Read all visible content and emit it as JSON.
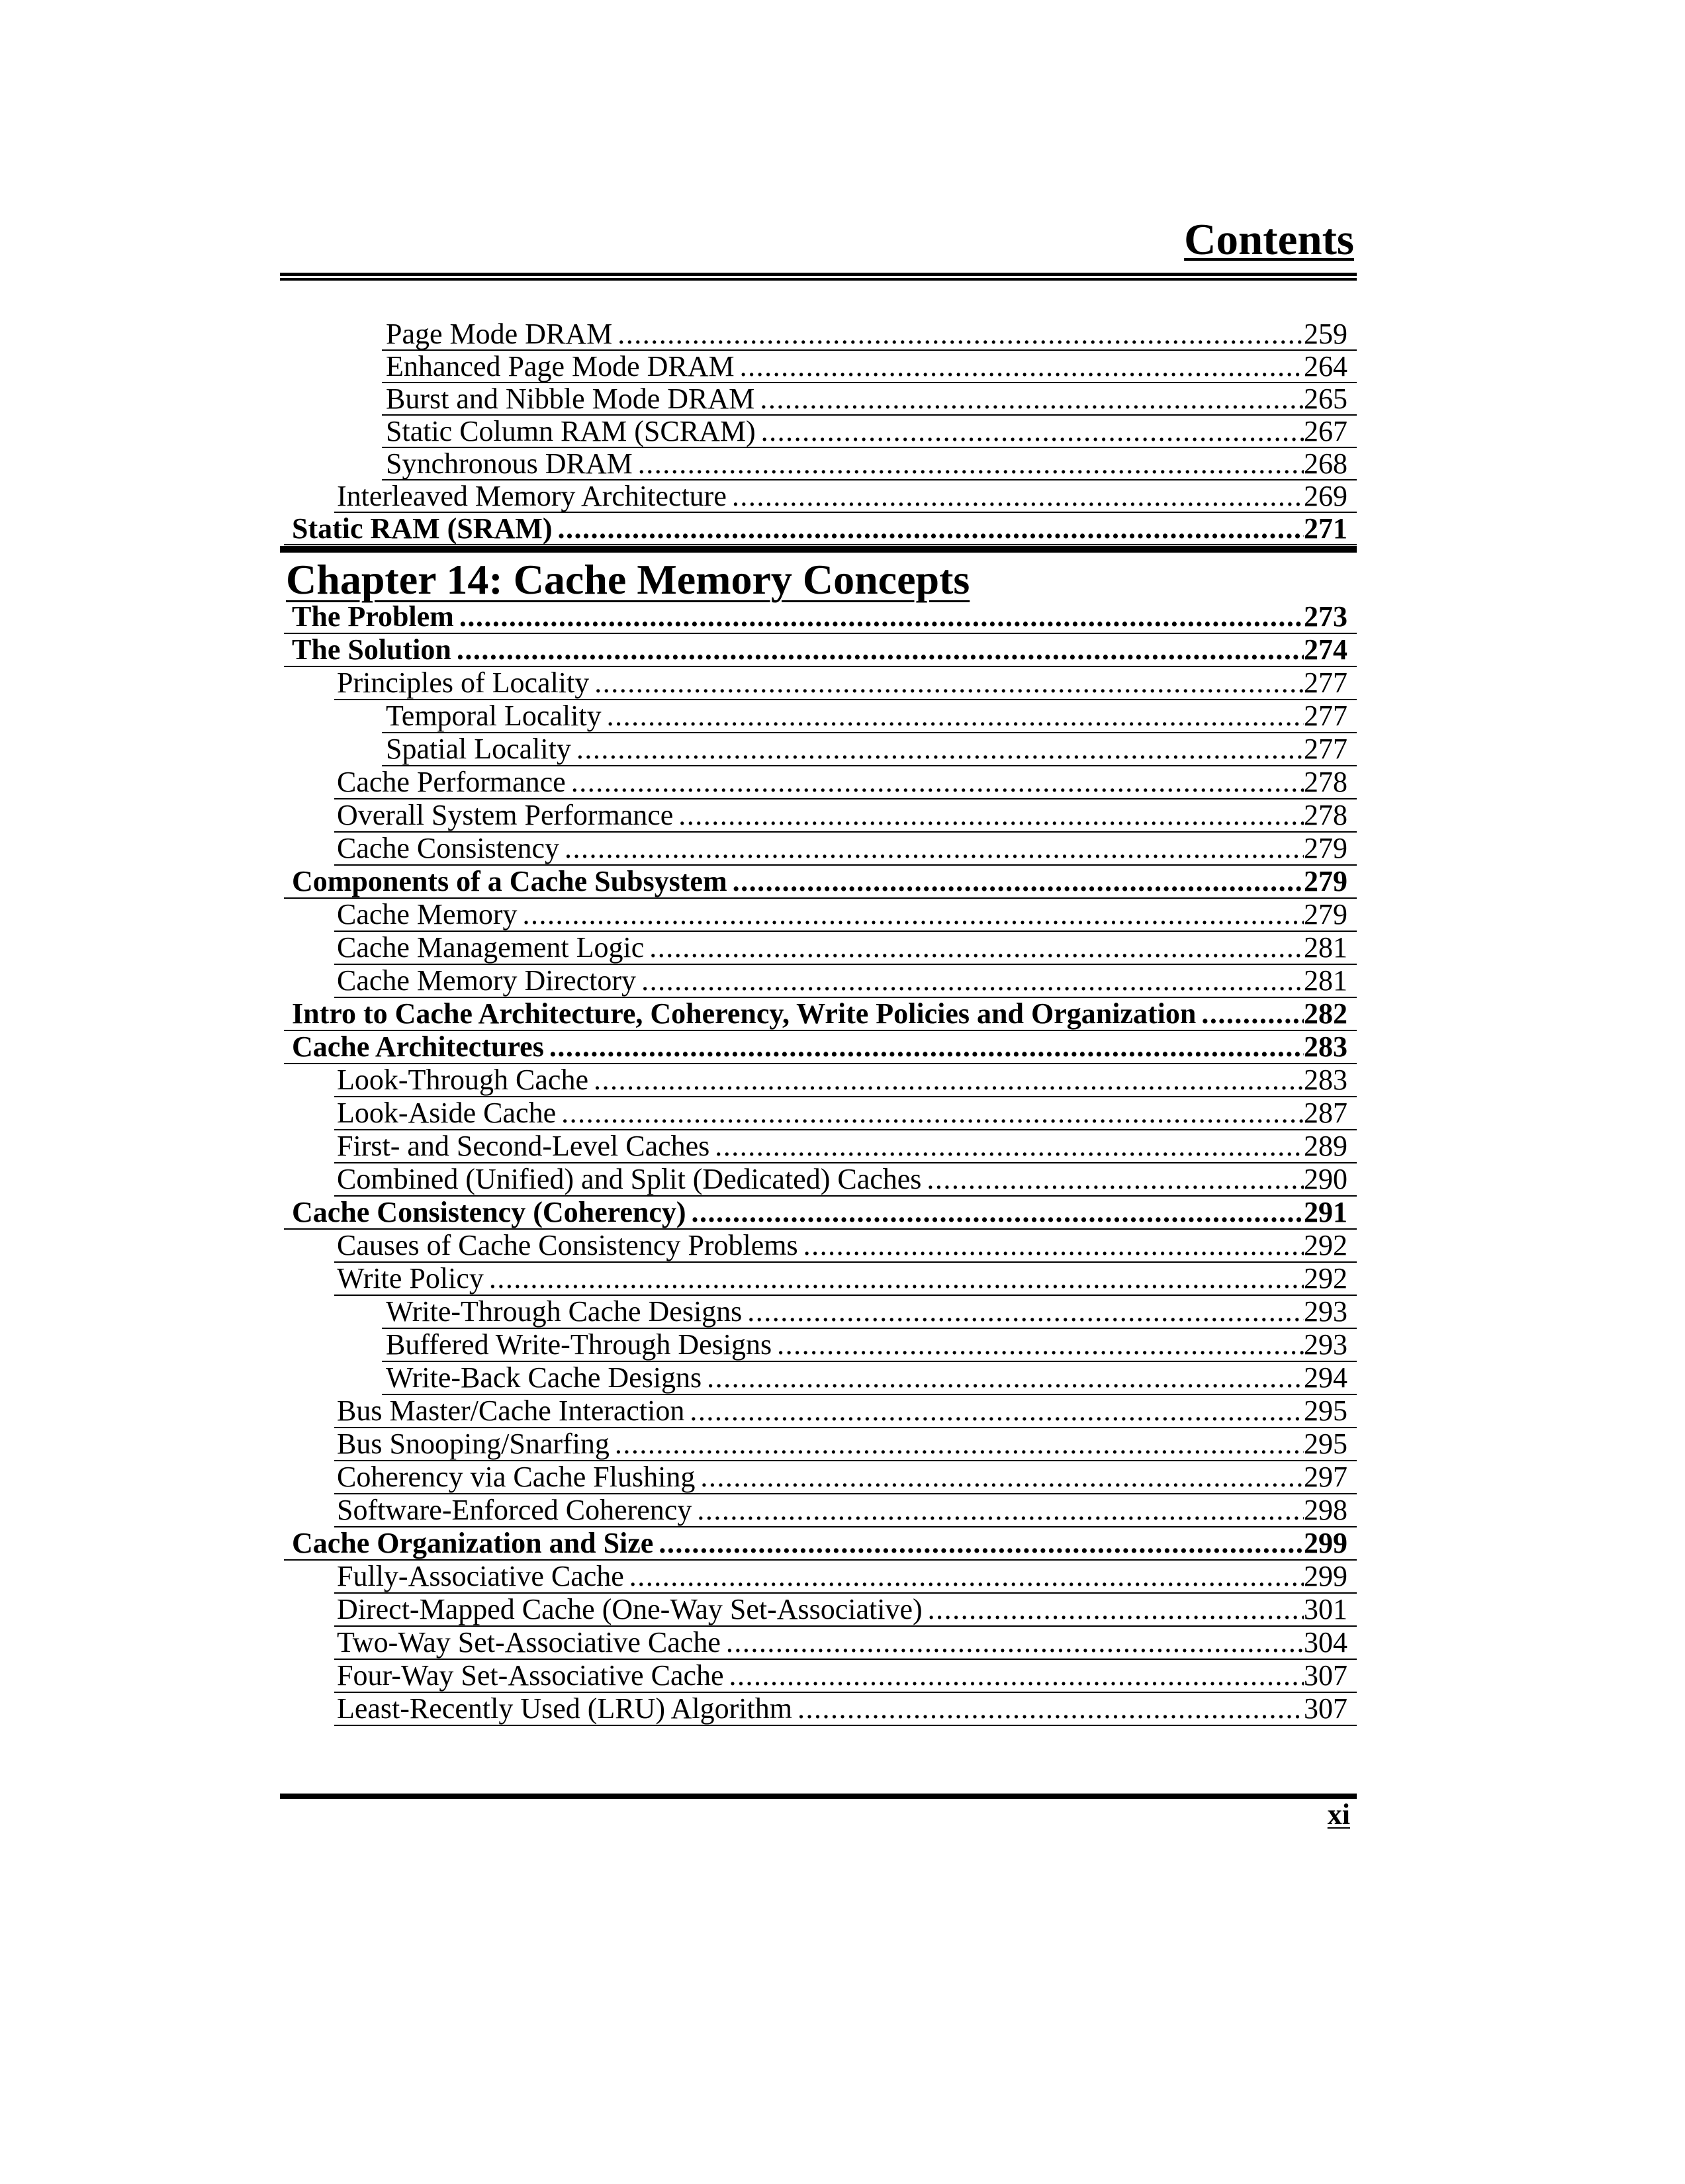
{
  "header": {
    "title": "Contents"
  },
  "chapter": {
    "title": "Chapter 14: Cache Memory Concepts"
  },
  "footer": {
    "page_number": "xi"
  },
  "colors": {
    "ink": "#000000",
    "paper": "#ffffff"
  },
  "toc": {
    "leader_char": ".",
    "top": [
      {
        "title": "Page Mode DRAM",
        "page": "259",
        "level": 2,
        "bold": false
      },
      {
        "title": "Enhanced Page Mode DRAM",
        "page": "264",
        "level": 2,
        "bold": false
      },
      {
        "title": "Burst and Nibble Mode DRAM",
        "page": "265",
        "level": 2,
        "bold": false
      },
      {
        "title": "Static Column RAM (SCRAM)",
        "page": "267",
        "level": 2,
        "bold": false
      },
      {
        "title": "Synchronous DRAM",
        "page": "268",
        "level": 2,
        "bold": false
      },
      {
        "title": "Interleaved Memory Architecture",
        "page": "269",
        "level": 1,
        "bold": false
      },
      {
        "title": "Static RAM (SRAM)",
        "page": "271",
        "level": 0,
        "bold": true
      }
    ],
    "chapter": [
      {
        "title": "The Problem",
        "page": "273",
        "level": 0,
        "bold": true
      },
      {
        "title": "The Solution",
        "page": "274",
        "level": 0,
        "bold": true
      },
      {
        "title": "Principles of Locality",
        "page": "277",
        "level": 1,
        "bold": false
      },
      {
        "title": "Temporal Locality",
        "page": "277",
        "level": 2,
        "bold": false
      },
      {
        "title": "Spatial Locality",
        "page": "277",
        "level": 2,
        "bold": false
      },
      {
        "title": "Cache Performance",
        "page": "278",
        "level": 1,
        "bold": false
      },
      {
        "title": "Overall System Performance",
        "page": "278",
        "level": 1,
        "bold": false
      },
      {
        "title": "Cache Consistency",
        "page": "279",
        "level": 1,
        "bold": false
      },
      {
        "title": "Components of a Cache Subsystem",
        "page": "279",
        "level": 0,
        "bold": true
      },
      {
        "title": "Cache Memory",
        "page": "279",
        "level": 1,
        "bold": false
      },
      {
        "title": "Cache Management Logic",
        "page": "281",
        "level": 1,
        "bold": false
      },
      {
        "title": "Cache Memory Directory",
        "page": "281",
        "level": 1,
        "bold": false
      },
      {
        "title": "Intro to Cache Architecture, Coherency, Write Policies and Organization",
        "page": "282",
        "level": 0,
        "bold": true
      },
      {
        "title": "Cache Architectures",
        "page": "283",
        "level": 0,
        "bold": true
      },
      {
        "title": "Look-Through Cache",
        "page": "283",
        "level": 1,
        "bold": false
      },
      {
        "title": "Look-Aside Cache",
        "page": "287",
        "level": 1,
        "bold": false
      },
      {
        "title": "First- and Second-Level Caches",
        "page": "289",
        "level": 1,
        "bold": false
      },
      {
        "title": "Combined (Unified) and Split (Dedicated) Caches",
        "page": "290",
        "level": 1,
        "bold": false
      },
      {
        "title": "Cache Consistency (Coherency)",
        "page": "291",
        "level": 0,
        "bold": true
      },
      {
        "title": "Causes of Cache Consistency Problems",
        "page": "292",
        "level": 1,
        "bold": false
      },
      {
        "title": "Write Policy",
        "page": "292",
        "level": 1,
        "bold": false
      },
      {
        "title": "Write-Through Cache Designs",
        "page": "293",
        "level": 2,
        "bold": false
      },
      {
        "title": "Buffered Write-Through Designs",
        "page": "293",
        "level": 2,
        "bold": false
      },
      {
        "title": "Write-Back Cache Designs",
        "page": "294",
        "level": 2,
        "bold": false
      },
      {
        "title": "Bus Master/Cache Interaction",
        "page": "295",
        "level": 1,
        "bold": false
      },
      {
        "title": "Bus Snooping/Snarfing",
        "page": "295",
        "level": 1,
        "bold": false
      },
      {
        "title": "Coherency via Cache Flushing",
        "page": "297",
        "level": 1,
        "bold": false
      },
      {
        "title": "Software-Enforced Coherency",
        "page": "298",
        "level": 1,
        "bold": false
      },
      {
        "title": "Cache Organization and Size",
        "page": "299",
        "level": 0,
        "bold": true
      },
      {
        "title": "Fully-Associative Cache",
        "page": "299",
        "level": 1,
        "bold": false
      },
      {
        "title": "Direct-Mapped Cache (One-Way Set-Associative)",
        "page": "301",
        "level": 1,
        "bold": false
      },
      {
        "title": "Two-Way Set-Associative Cache",
        "page": "304",
        "level": 1,
        "bold": false
      },
      {
        "title": "Four-Way Set-Associative Cache",
        "page": "307",
        "level": 1,
        "bold": false
      },
      {
        "title": "Least-Recently Used (LRU) Algorithm",
        "page": "307",
        "level": 1,
        "bold": false
      }
    ]
  }
}
